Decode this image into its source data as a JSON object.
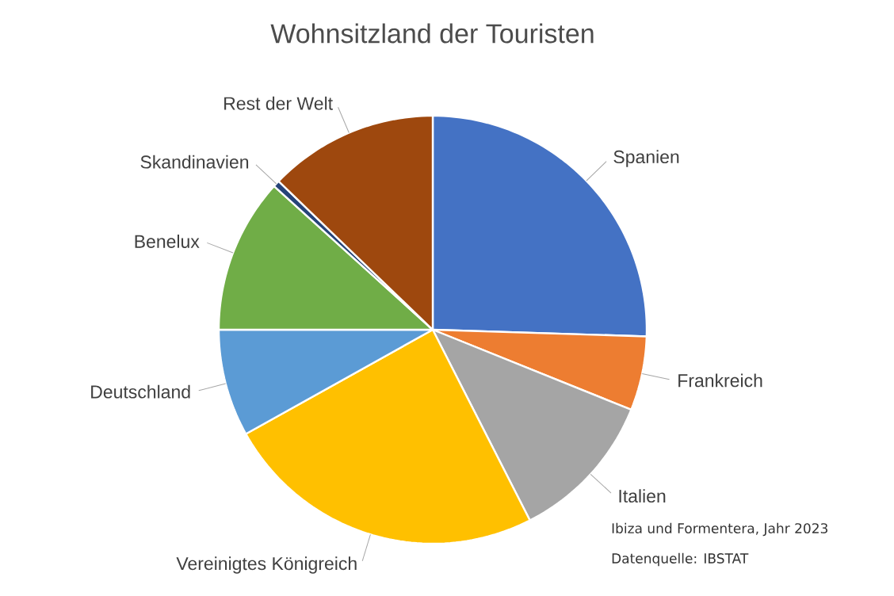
{
  "chart_data": {
    "type": "pie",
    "title": "Wohnsitzland der Touristen",
    "categories": [
      "Spanien",
      "Frankreich",
      "Italien",
      "Vereinigtes Königreich",
      "Deutschland",
      "Benelux",
      "Skandinavien",
      "Rest der Welt"
    ],
    "values": [
      25.5,
      5.6,
      11.4,
      24.4,
      8.1,
      11.7,
      0.5,
      12.8
    ],
    "colors": [
      "#4472c4",
      "#ed7d31",
      "#a5a5a5",
      "#ffc000",
      "#5b9bd5",
      "#70ad47",
      "#264478",
      "#9e480e"
    ],
    "annotations": [
      "Ibiza und Formentera, Jahr 2023",
      "Datenquelle: IBSTAT"
    ]
  }
}
